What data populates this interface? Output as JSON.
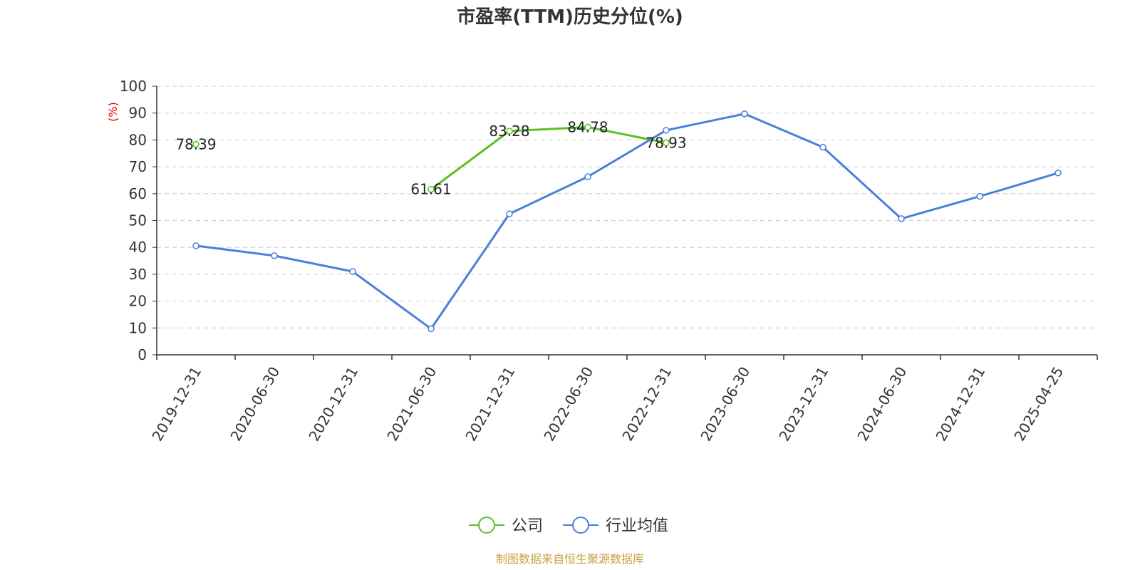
{
  "chart_data": {
    "type": "line",
    "title": "市盈率(TTM)历史分位(%)",
    "xlabel": "",
    "ylabel": "(%)",
    "ylim": [
      0,
      100
    ],
    "yticks": [
      0,
      10,
      20,
      30,
      40,
      50,
      60,
      70,
      80,
      90,
      100
    ],
    "categories": [
      "2019-12-31",
      "2020-06-30",
      "2020-12-31",
      "2021-06-30",
      "2021-12-31",
      "2022-06-30",
      "2022-12-31",
      "2023-06-30",
      "2023-12-31",
      "2024-06-30",
      "2024-12-31",
      "2025-04-25"
    ],
    "grid": "horizontal-dashed",
    "legend_position": "bottom",
    "series": [
      {
        "name": "公司",
        "color": "#5cc126",
        "values": [
          78.39,
          null,
          null,
          61.61,
          83.28,
          84.78,
          78.93,
          null,
          null,
          null,
          null,
          null
        ],
        "labels": [
          "78.39",
          null,
          null,
          "61.61",
          "83.28",
          "84.78",
          "78.93",
          null,
          null,
          null,
          null,
          null
        ]
      },
      {
        "name": "行业均值",
        "color": "#4a7fdc",
        "values": [
          40.6,
          36.9,
          31.0,
          9.7,
          52.5,
          66.3,
          83.6,
          89.7,
          77.3,
          50.7,
          59.0,
          67.7
        ]
      }
    ],
    "source": "制图数据来自恒生聚源数据库",
    "source_color": "#c8a040",
    "ylabel_color": "#e00000"
  }
}
